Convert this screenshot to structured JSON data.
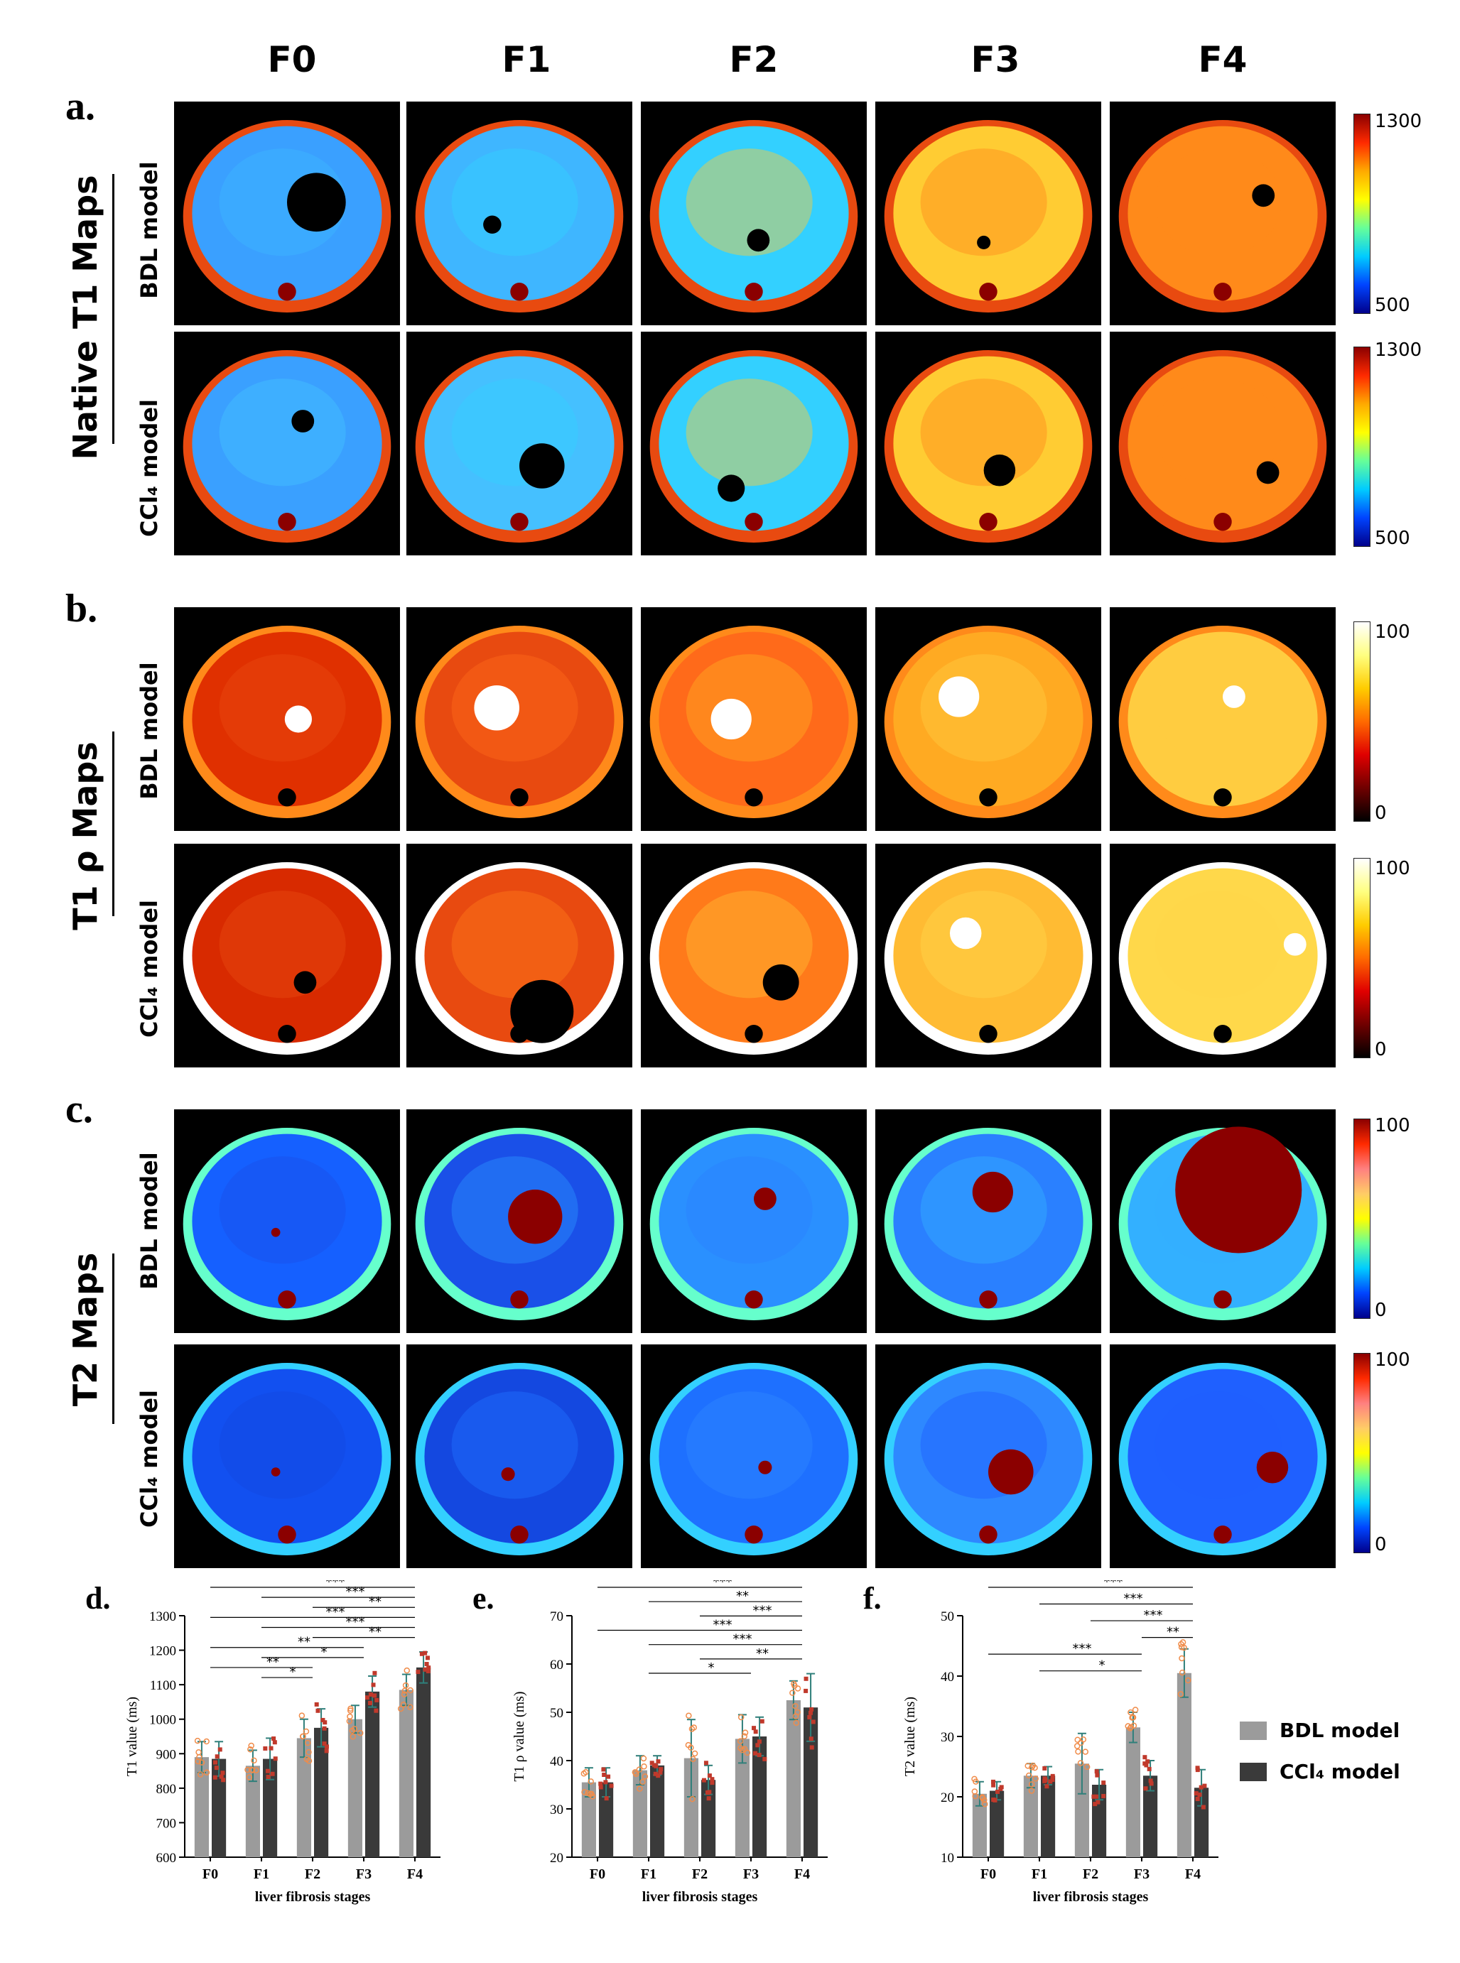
{
  "columns": [
    "F0",
    "F1",
    "F2",
    "F3",
    "F4"
  ],
  "panels": {
    "a": {
      "letter": "a.",
      "title": "Native T1 Maps",
      "rows": [
        "BDL model",
        "CCl₄ model"
      ],
      "cbar_max": "1300",
      "cbar_min": "500"
    },
    "b": {
      "letter": "b.",
      "title": "T1 ρ Maps",
      "rows": [
        "BDL model",
        "CCl₄ model"
      ],
      "cbar_max": "100",
      "cbar_min": "0"
    },
    "c": {
      "letter": "c.",
      "title": "T2 Maps",
      "rows": [
        "BDL model",
        "CCl₄ model"
      ],
      "cbar_max": "100",
      "cbar_min": "0"
    }
  },
  "colors": {
    "bdl": "#9b9b9b",
    "ccl4": "#3a3a3a",
    "err": "#2f7f7a",
    "bdl_points": "#f08c4a",
    "ccl4_points": "#c0392b"
  },
  "legend": {
    "bdl": "BDL model",
    "ccl4": "CCl₄ model"
  },
  "chart_data": [
    {
      "id": "d",
      "letter": "d.",
      "type": "bar",
      "categories": [
        "F0",
        "F1",
        "F2",
        "F3",
        "F4"
      ],
      "series": [
        {
          "name": "BDL model",
          "values": [
            890,
            865,
            945,
            1000,
            1085
          ],
          "err": [
            45,
            45,
            55,
            40,
            45
          ]
        },
        {
          "name": "CCl₄ model",
          "values": [
            885,
            885,
            975,
            1080,
            1150
          ],
          "err": [
            50,
            60,
            55,
            45,
            45
          ]
        }
      ],
      "xlabel": "liver fibrosis stages",
      "ylabel": "T1 value (ms)",
      "ylim": [
        600,
        1300
      ],
      "yticks": [
        600,
        700,
        800,
        900,
        1000,
        1100,
        1200,
        1300
      ],
      "significance": [
        {
          "from": 0,
          "to": 4,
          "label": "***"
        },
        {
          "from": 1,
          "to": 4,
          "label": "***"
        },
        {
          "from": 2,
          "to": 4,
          "label": "**"
        },
        {
          "from": 0,
          "to": 4,
          "label": "***"
        },
        {
          "from": 1,
          "to": 4,
          "label": "***"
        },
        {
          "from": 2,
          "to": 4,
          "label": "**"
        },
        {
          "from": 0,
          "to": 3,
          "label": "**"
        },
        {
          "from": 1,
          "to": 3,
          "label": "*"
        },
        {
          "from": 0,
          "to": 2,
          "label": "**"
        },
        {
          "from": 1,
          "to": 2,
          "label": "*"
        }
      ]
    },
    {
      "id": "e",
      "letter": "e.",
      "type": "bar",
      "categories": [
        "F0",
        "F1",
        "F2",
        "F3",
        "F4"
      ],
      "series": [
        {
          "name": "BDL model",
          "values": [
            35.5,
            38,
            40.5,
            44.5,
            52.5
          ],
          "err": [
            3,
            3,
            8,
            5,
            4
          ]
        },
        {
          "name": "CCl₄ model",
          "values": [
            35.5,
            39,
            36,
            45,
            51
          ],
          "err": [
            3,
            2,
            3,
            4,
            7
          ]
        }
      ],
      "xlabel": "liver fibrosis stages",
      "ylabel": "T1 ρ value (ms)",
      "ylim": [
        20,
        70
      ],
      "yticks": [
        20,
        30,
        40,
        50,
        60,
        70
      ],
      "significance": [
        {
          "from": 0,
          "to": 4,
          "label": "***"
        },
        {
          "from": 1,
          "to": 4,
          "label": "**"
        },
        {
          "from": 2,
          "to": 4,
          "label": "***"
        },
        {
          "from": 0,
          "to": 4,
          "label": "***"
        },
        {
          "from": 1,
          "to": 4,
          "label": "***"
        },
        {
          "from": 2,
          "to": 4,
          "label": "**"
        },
        {
          "from": 1,
          "to": 3,
          "label": "*"
        }
      ]
    },
    {
      "id": "f",
      "letter": "f.",
      "type": "bar",
      "categories": [
        "F0",
        "F1",
        "F2",
        "F3",
        "F4"
      ],
      "series": [
        {
          "name": "BDL model",
          "values": [
            20.5,
            23.5,
            25.5,
            31.5,
            40.5
          ],
          "err": [
            2,
            2,
            5,
            2.5,
            4
          ]
        },
        {
          "name": "CCl₄ model",
          "values": [
            21,
            23.5,
            22,
            23.5,
            21.5
          ],
          "err": [
            1.5,
            1.5,
            2.5,
            2.5,
            3
          ]
        }
      ],
      "xlabel": "liver fibrosis stages",
      "ylabel": "T2 value (ms)",
      "ylim": [
        10,
        50
      ],
      "yticks": [
        10,
        20,
        30,
        40,
        50
      ],
      "significance": [
        {
          "from": 0,
          "to": 4,
          "label": "***"
        },
        {
          "from": 1,
          "to": 4,
          "label": "***"
        },
        {
          "from": 2,
          "to": 4,
          "label": "***"
        },
        {
          "from": 3,
          "to": 4,
          "label": "**"
        },
        {
          "from": 0,
          "to": 3,
          "label": "***"
        },
        {
          "from": 1,
          "to": 3,
          "label": "*"
        }
      ]
    }
  ]
}
